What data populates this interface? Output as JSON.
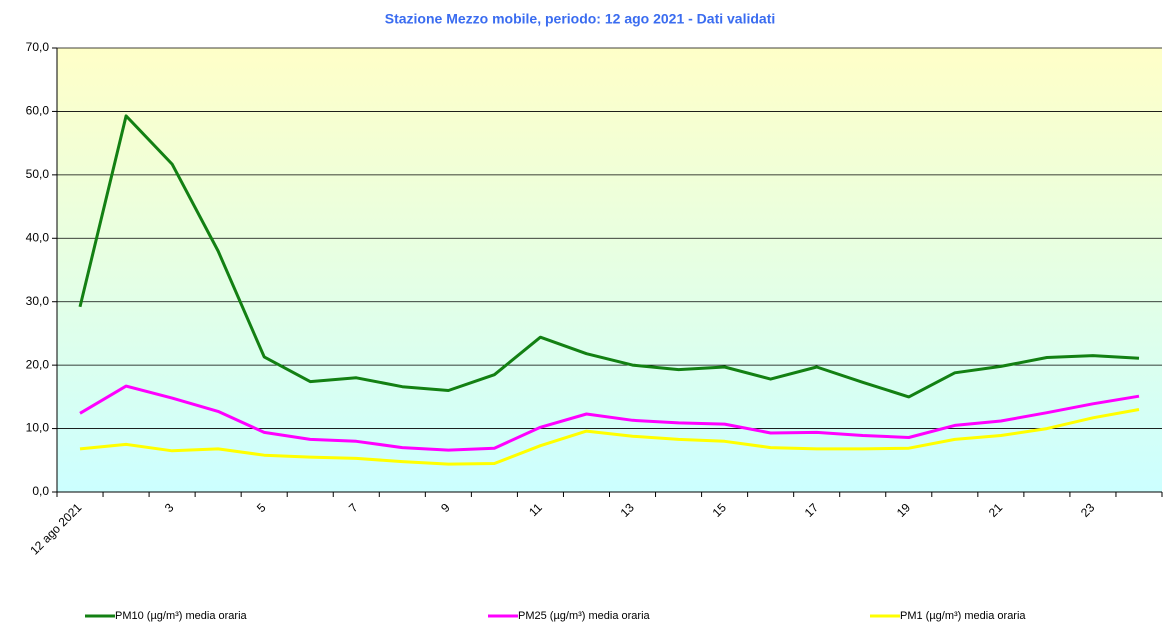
{
  "chart_data": {
    "type": "line",
    "title": "Stazione Mezzo mobile, periodo: 12 ago 2021 - Dati validati",
    "categories": [
      "12 ago 2021",
      null,
      "3",
      null,
      "5",
      null,
      "7",
      null,
      "9",
      null,
      "11",
      null,
      "13",
      null,
      "15",
      null,
      "17",
      null,
      "19",
      null,
      "21",
      null,
      "23",
      null
    ],
    "series": [
      {
        "name": "PM10 (µg/m³) media oraria",
        "color": "#138013",
        "values": [
          29.2,
          59.3,
          51.7,
          38.0,
          21.3,
          17.4,
          18.0,
          16.6,
          16.0,
          18.5,
          24.4,
          21.8,
          20.0,
          19.3,
          19.7,
          17.8,
          19.7,
          17.3,
          15.0,
          18.8,
          19.8,
          21.2,
          21.5,
          21.1
        ]
      },
      {
        "name": "PM25 (µg/m³) media oraria",
        "color": "#ff00ff",
        "values": [
          12.4,
          16.7,
          14.8,
          12.7,
          9.4,
          8.3,
          8.0,
          7.0,
          6.6,
          6.9,
          10.2,
          12.3,
          11.3,
          10.9,
          10.7,
          9.3,
          9.4,
          8.9,
          8.6,
          10.5,
          11.2,
          12.5,
          13.9,
          15.1
        ]
      },
      {
        "name": "PM1 (µg/m³) media oraria",
        "color": "#ffff00",
        "values": [
          6.8,
          7.5,
          6.5,
          6.8,
          5.8,
          5.5,
          5.3,
          4.8,
          4.4,
          4.5,
          7.3,
          9.6,
          8.8,
          8.3,
          8.0,
          7.0,
          6.8,
          6.8,
          6.9,
          8.3,
          8.9,
          10.0,
          11.7,
          13.0
        ]
      }
    ],
    "ylim": [
      0,
      70
    ],
    "yticks": [
      {
        "value": 0,
        "label": "0,0"
      },
      {
        "value": 10,
        "label": "10,0"
      },
      {
        "value": 20,
        "label": "20,0"
      },
      {
        "value": 30,
        "label": "30,0"
      },
      {
        "value": 40,
        "label": "40,0"
      },
      {
        "value": 50,
        "label": "50,0"
      },
      {
        "value": 60,
        "label": "60,0"
      },
      {
        "value": 70,
        "label": "70,0"
      }
    ],
    "grid": true
  }
}
